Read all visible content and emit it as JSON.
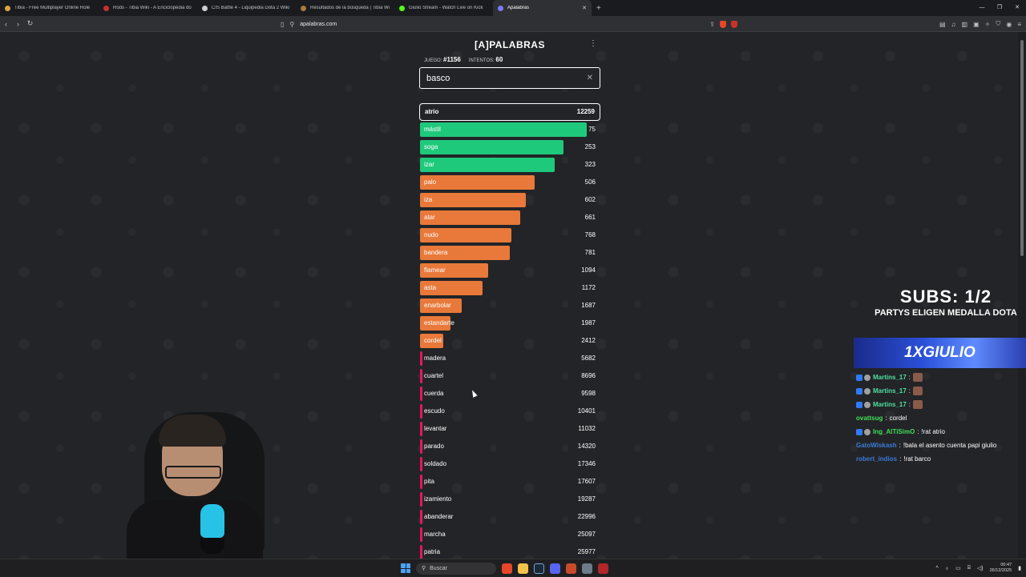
{
  "browser": {
    "tabs": [
      {
        "title": "Tibia - Free Multiplayer Online Role",
        "color": "#d9a441",
        "active": false
      },
      {
        "title": "Rods - Tibia Wiki - A Enciclopédia do",
        "color": "#c4322f",
        "active": false
      },
      {
        "title": "CIS Battle 4 - Liquipedia Dota 2 Wiki",
        "color": "#cccccc",
        "active": false
      },
      {
        "title": "Resultados de la búsqueda | Tibia Wi",
        "color": "#a87a3c",
        "active": false
      },
      {
        "title": "Giulio Stream - Watch Live on Kick",
        "color": "#53fc18",
        "active": false
      },
      {
        "title": "Apalabras",
        "color": "#7a7aff",
        "active": true
      }
    ],
    "url": "apalabras.com"
  },
  "game": {
    "title": "[A]PALABRAS",
    "juego_label": "JUEGO:",
    "juego_value": "#1156",
    "intentos_label": "INTENTOS:",
    "intentos_value": "60",
    "input_value": "basco",
    "current": {
      "word": "atrio",
      "rank": "12259"
    },
    "guesses": [
      {
        "word": "mástil",
        "rank": "75",
        "fill": 0.93,
        "color": "#1fc97c"
      },
      {
        "word": "soga",
        "rank": "253",
        "fill": 0.8,
        "color": "#1fc97c"
      },
      {
        "word": "izar",
        "rank": "323",
        "fill": 0.75,
        "color": "#1fc97c"
      },
      {
        "word": "palo",
        "rank": "506",
        "fill": 0.64,
        "color": "#e8793a"
      },
      {
        "word": "iza",
        "rank": "602",
        "fill": 0.59,
        "color": "#e8793a"
      },
      {
        "word": "atar",
        "rank": "661",
        "fill": 0.56,
        "color": "#e8793a"
      },
      {
        "word": "nudo",
        "rank": "768",
        "fill": 0.51,
        "color": "#e8793a"
      },
      {
        "word": "bandera",
        "rank": "781",
        "fill": 0.5,
        "color": "#e8793a"
      },
      {
        "word": "flamear",
        "rank": "1094",
        "fill": 0.38,
        "color": "#e8793a"
      },
      {
        "word": "asta",
        "rank": "1172",
        "fill": 0.35,
        "color": "#e8793a"
      },
      {
        "word": "enarbolar",
        "rank": "1687",
        "fill": 0.23,
        "color": "#e8793a"
      },
      {
        "word": "estandarte",
        "rank": "1987",
        "fill": 0.17,
        "color": "#e8793a"
      },
      {
        "word": "cordel",
        "rank": "2412",
        "fill": 0.13,
        "color": "#e8793a"
      },
      {
        "word": "madera",
        "rank": "5682",
        "fill": 0.01,
        "color": "#e8175d"
      },
      {
        "word": "cuartel",
        "rank": "8696",
        "fill": 0.01,
        "color": "#e8175d"
      },
      {
        "word": "cuerda",
        "rank": "9598",
        "fill": 0.01,
        "color": "#e8175d"
      },
      {
        "word": "escudo",
        "rank": "10401",
        "fill": 0.01,
        "color": "#e8175d"
      },
      {
        "word": "levantar",
        "rank": "11032",
        "fill": 0.01,
        "color": "#e8175d"
      },
      {
        "word": "parado",
        "rank": "14320",
        "fill": 0.01,
        "color": "#e8175d"
      },
      {
        "word": "soldado",
        "rank": "17346",
        "fill": 0.01,
        "color": "#e8175d"
      },
      {
        "word": "pita",
        "rank": "17607",
        "fill": 0.01,
        "color": "#e8175d"
      },
      {
        "word": "izamiento",
        "rank": "19287",
        "fill": 0.01,
        "color": "#e8175d"
      },
      {
        "word": "abanderar",
        "rank": "22996",
        "fill": 0.01,
        "color": "#e8175d"
      },
      {
        "word": "marcha",
        "rank": "25097",
        "fill": 0.01,
        "color": "#e8175d"
      },
      {
        "word": "patria",
        "rank": "25977",
        "fill": 0.01,
        "color": "#e8175d"
      }
    ]
  },
  "overlay": {
    "subs": "SUBS: 1/2",
    "subtitle": "PARTYS ELIGEN MEDALLA DOTA",
    "banner": "1XGIULIO"
  },
  "chat": [
    {
      "user": "Martins_17",
      "sep": ":",
      "text": "",
      "emote": true,
      "color": "#4fe0a0",
      "badges": 2
    },
    {
      "user": "Martins_17",
      "sep": ":",
      "text": "",
      "emote": true,
      "color": "#4fe0a0",
      "badges": 2
    },
    {
      "user": "Martins_17",
      "sep": ":",
      "text": "",
      "emote": true,
      "color": "#4fe0a0",
      "badges": 2
    },
    {
      "user": "ovattsug",
      "sep": ":",
      "text": "cordel",
      "emote": false,
      "color": "#43e05a",
      "badges": 0
    },
    {
      "user": "Ing_AlTiSimO",
      "sep": ":",
      "text": "!rat atrio",
      "emote": false,
      "color": "#43e05a",
      "badges": 2
    },
    {
      "user": "GatoWiskash",
      "sep": ":",
      "text": "!bala el asento cuenta papi giulio",
      "emote": false,
      "color": "#3d7bd9",
      "badges": 0
    },
    {
      "user": "robert_indios",
      "sep": ":",
      "text": "!rat barco",
      "emote": false,
      "color": "#3d7bd9",
      "badges": 0
    }
  ],
  "taskbar": {
    "search_placeholder": "Buscar",
    "time": "00:47",
    "date": "26/12/2025"
  }
}
